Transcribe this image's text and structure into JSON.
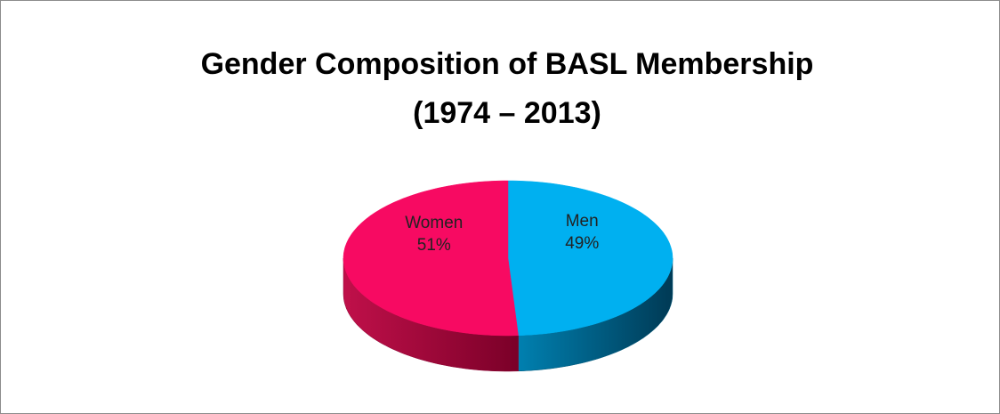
{
  "chart_data": {
    "type": "pie",
    "title": [
      "Gender Composition of BASL Membership",
      "(1974 – 2013)"
    ],
    "categories": [
      "Men",
      "Women"
    ],
    "values": [
      49,
      51
    ],
    "value_labels": [
      "49%",
      "51%"
    ],
    "colors": [
      "#00b0f0",
      "#f70a62"
    ],
    "side_colors": [
      "#00587a",
      "#8c0030"
    ]
  }
}
